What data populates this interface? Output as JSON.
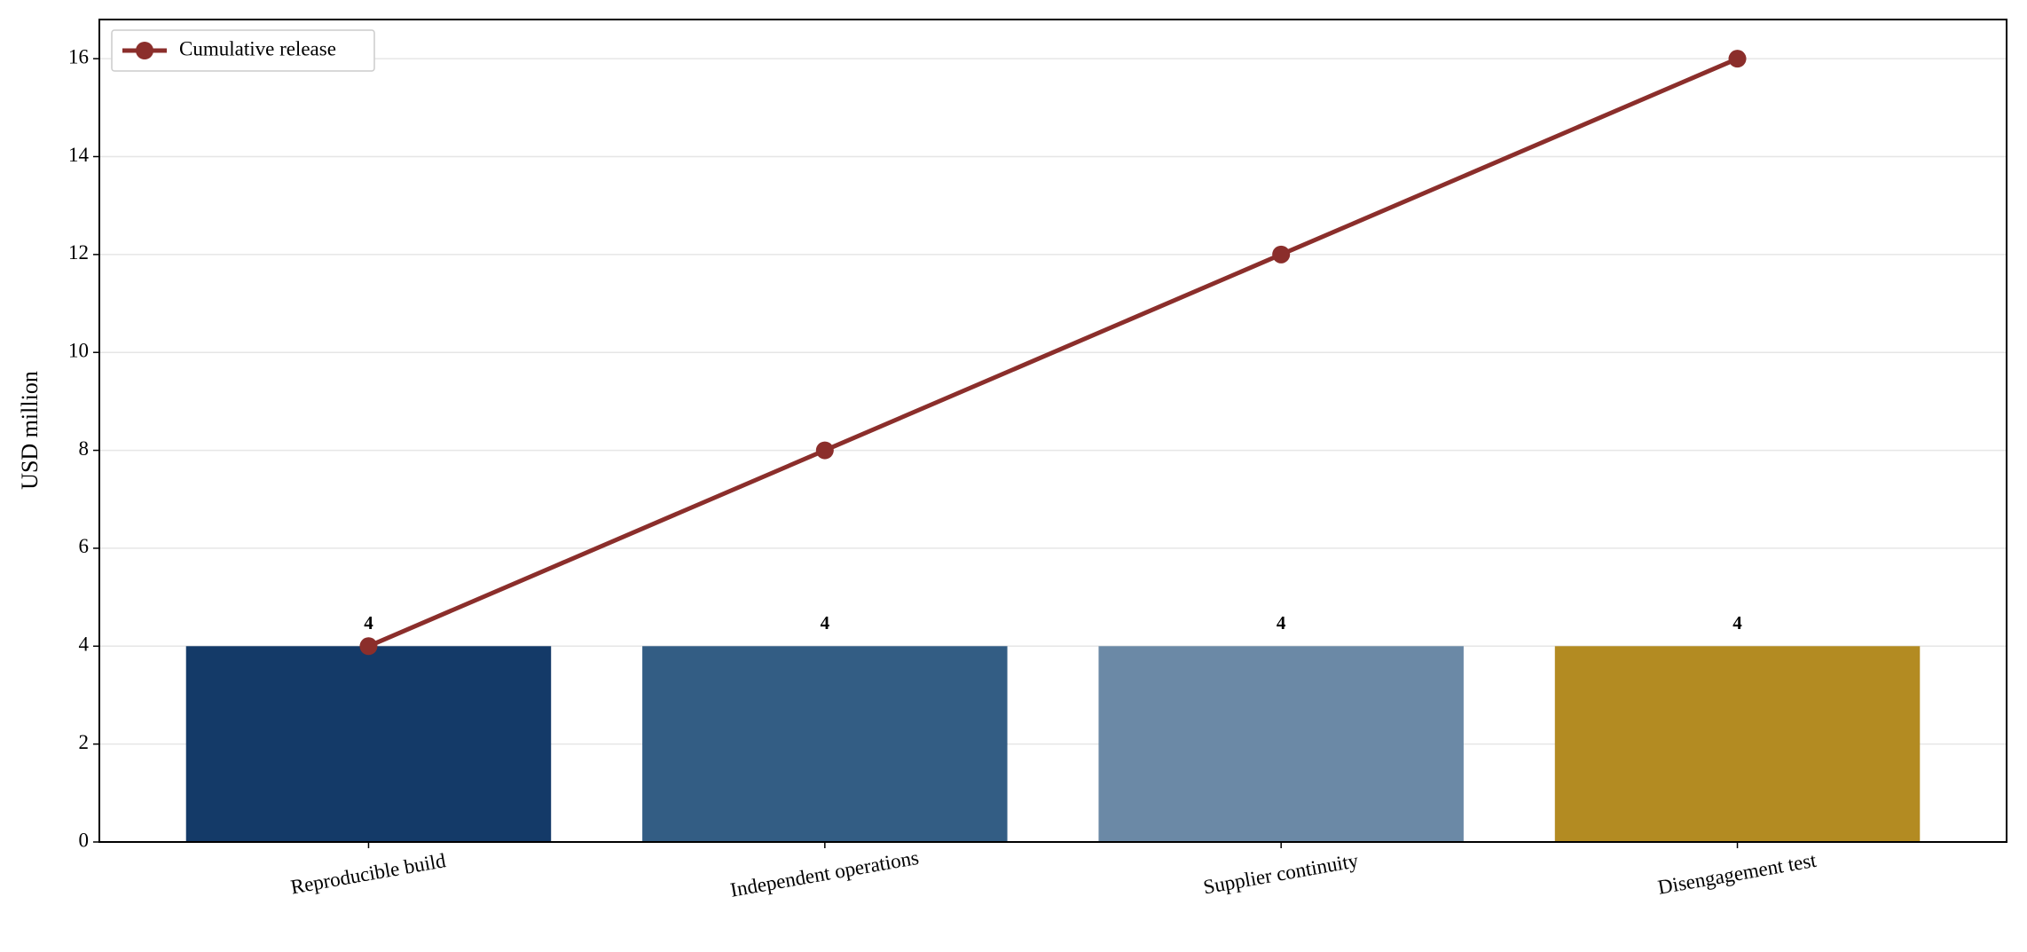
{
  "chart_data": {
    "type": "bar",
    "y_label": "USD million",
    "categories": [
      "Reproducible build",
      "Independent operations",
      "Supplier continuity",
      "Disengagement test"
    ],
    "series": [
      {
        "type": "bar",
        "colors": [
          "#143a68",
          "#335d84",
          "#6b89a6",
          "#b38b22"
        ],
        "values": [
          4,
          4,
          4,
          4
        ]
      },
      {
        "type": "line",
        "name": "Cumulative release",
        "color": "#8b2e2b",
        "values": [
          4,
          8,
          12,
          16
        ]
      }
    ],
    "ylim": [
      0,
      16.8
    ],
    "yticks": [
      0,
      2,
      4,
      6,
      8,
      10,
      12,
      14,
      16
    ],
    "grid": true,
    "legend": "upper left"
  }
}
